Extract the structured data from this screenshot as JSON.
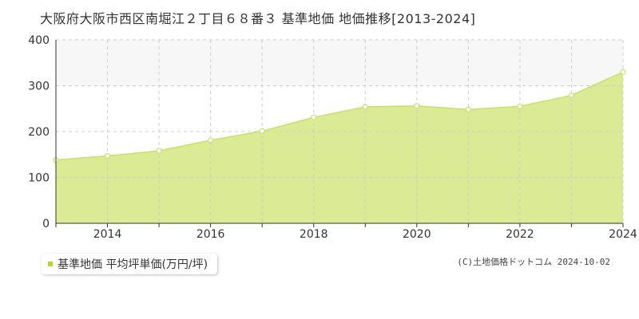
{
  "title": "大阪府大阪市西区南堀江２丁目６８番３ 基準地価 地価推移[2013-2024]",
  "legend": {
    "label": "基準地価 平均坪単価(万円/坪)"
  },
  "copyright": "(C)土地価格ドットコム 2024-10-02",
  "colors": {
    "fill": "#dbeb95",
    "line": "#c6e06a",
    "grid": "#cccccc",
    "band": "#f7f7f7",
    "axis": "#333333"
  },
  "chart_data": {
    "type": "area",
    "x": [
      2013,
      2014,
      2015,
      2016,
      2017,
      2018,
      2019,
      2020,
      2021,
      2022,
      2023,
      2024
    ],
    "series": [
      {
        "name": "基準地価 平均坪単価(万円/坪)",
        "values": [
          138,
          147,
          158,
          181,
          201,
          231,
          254,
          256,
          248,
          255,
          279,
          330
        ]
      }
    ],
    "xticks": [
      "2014",
      "2016",
      "2018",
      "2020",
      "2022",
      "2024"
    ],
    "yticks": [
      "0",
      "100",
      "200",
      "300",
      "400"
    ],
    "xlim": [
      2013,
      2024
    ],
    "ylim": [
      0,
      400
    ],
    "grid": true
  }
}
